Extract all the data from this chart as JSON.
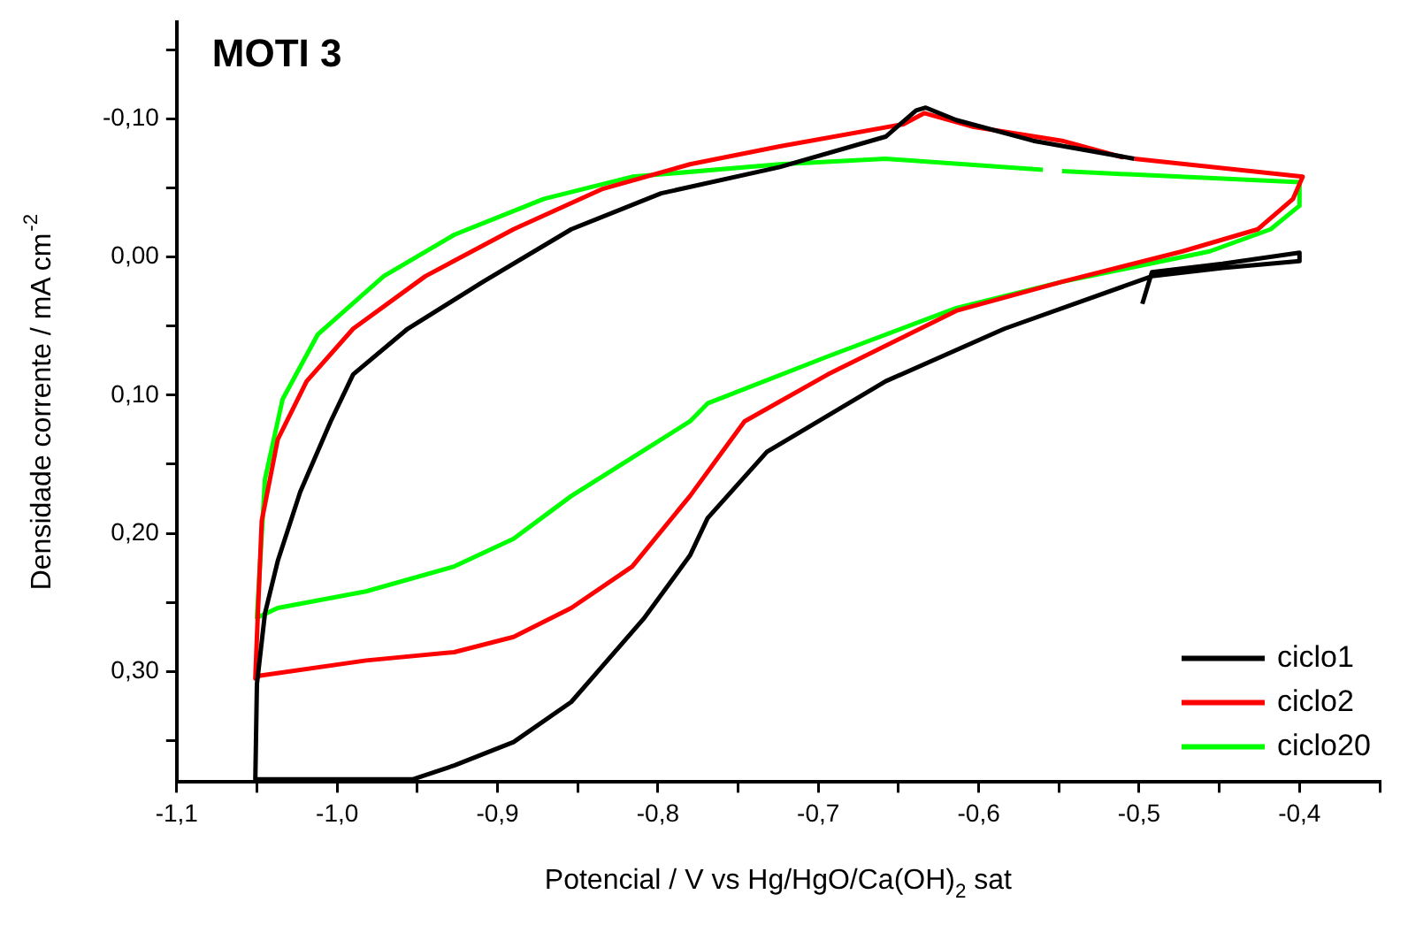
{
  "chart_data": {
    "type": "line",
    "title": "MOTI 3",
    "xlabel": "Potencial / V vs Hg/HgO/Ca(OH)$_{2}$ sat",
    "ylabel": "Densidade corrente / mA cm$^{-2}$",
    "xlim": [
      -1.1,
      -0.35
    ],
    "ylim": [
      0.38,
      -0.17
    ],
    "xticks": [
      {
        "value": -1.1,
        "label": "-1,1"
      },
      {
        "value": -1.05,
        "label": null
      },
      {
        "value": -1.0,
        "label": "-1,0"
      },
      {
        "value": -0.95,
        "label": null
      },
      {
        "value": -0.9,
        "label": "-0,9"
      },
      {
        "value": -0.85,
        "label": null
      },
      {
        "value": -0.8,
        "label": "-0,8"
      },
      {
        "value": -0.75,
        "label": null
      },
      {
        "value": -0.7,
        "label": "-0,7"
      },
      {
        "value": -0.65,
        "label": null
      },
      {
        "value": -0.6,
        "label": "-0,6"
      },
      {
        "value": -0.55,
        "label": null
      },
      {
        "value": -0.5,
        "label": "-0,5"
      },
      {
        "value": -0.45,
        "label": null
      },
      {
        "value": -0.4,
        "label": "-0,4"
      },
      {
        "value": -0.35,
        "label": null
      }
    ],
    "yticks": [
      {
        "value": -0.15,
        "label": null
      },
      {
        "value": -0.1,
        "label": "-0,10"
      },
      {
        "value": -0.05,
        "label": null
      },
      {
        "value": 0.0,
        "label": "0,00"
      },
      {
        "value": 0.05,
        "label": null
      },
      {
        "value": 0.1,
        "label": "0,10"
      },
      {
        "value": 0.15,
        "label": null
      },
      {
        "value": 0.2,
        "label": "0,20"
      },
      {
        "value": 0.25,
        "label": null
      },
      {
        "value": 0.3,
        "label": "0,30"
      },
      {
        "value": 0.35,
        "label": null
      }
    ],
    "grid": false,
    "legend": "bottom right",
    "marker": "none",
    "line_style": "solid",
    "series": [
      {
        "name": "ciclo1",
        "color": "#000000",
        "x": [
          -0.498,
          -0.492,
          -0.448,
          -0.4,
          -0.4,
          -0.448,
          -0.492,
          -0.584,
          -0.658,
          -0.732,
          -0.769,
          -0.78,
          -0.809,
          -0.854,
          -0.89,
          -0.927,
          -0.953,
          -1.001,
          -1.051,
          -1.05,
          -1.045,
          -1.037,
          -1.023,
          -1.004,
          -0.99,
          -0.956,
          -0.909,
          -0.854,
          -0.798,
          -0.724,
          -0.658,
          -0.639,
          -0.633,
          -0.614,
          -0.566,
          -0.503
        ],
        "values": [
          0.034,
          0.011,
          0.005,
          -0.003,
          0.003,
          0.008,
          0.014,
          0.052,
          0.09,
          0.141,
          0.189,
          0.216,
          0.262,
          0.322,
          0.351,
          0.368,
          0.378,
          0.378,
          0.378,
          0.309,
          0.258,
          0.22,
          0.17,
          0.119,
          0.085,
          0.052,
          0.018,
          -0.02,
          -0.046,
          -0.065,
          -0.087,
          -0.106,
          -0.108,
          -0.099,
          -0.084,
          -0.071
        ]
      },
      {
        "name": "ciclo2",
        "color": "#ff0000",
        "x": [
          -0.503,
          -0.398,
          -0.404,
          -0.426,
          -0.473,
          -0.548,
          -0.614,
          -0.694,
          -0.746,
          -0.78,
          -0.816,
          -0.854,
          -0.89,
          -0.927,
          -0.982,
          -1.048,
          -1.051,
          -1.05,
          -1.047,
          -1.037,
          -1.019,
          -0.99,
          -0.945,
          -0.89,
          -0.835,
          -0.78,
          -0.724,
          -0.647,
          -0.634,
          -0.603,
          -0.548,
          -0.51
        ],
        "values": [
          -0.071,
          -0.058,
          -0.042,
          -0.02,
          -0.004,
          0.018,
          0.039,
          0.085,
          0.119,
          0.173,
          0.224,
          0.254,
          0.275,
          0.286,
          0.292,
          0.303,
          0.305,
          0.275,
          0.191,
          0.132,
          0.09,
          0.052,
          0.014,
          -0.02,
          -0.049,
          -0.067,
          -0.08,
          -0.096,
          -0.104,
          -0.094,
          -0.084,
          -0.072
        ]
      },
      {
        "name": "ciclo20",
        "color": "#00ff00",
        "x": [
          -0.548,
          -0.4,
          -0.4,
          -0.418,
          -0.456,
          -0.548,
          -0.614,
          -0.694,
          -0.769,
          -0.78,
          -0.854,
          -0.89,
          -0.927,
          -0.982,
          -1.037,
          -1.05,
          -1.045,
          -1.034,
          -1.012,
          -0.971,
          -0.927,
          -0.871,
          -0.816,
          -0.724,
          -0.658,
          -0.56
        ],
        "values": [
          -0.062,
          -0.054,
          -0.037,
          -0.02,
          -0.004,
          0.018,
          0.037,
          0.072,
          0.106,
          0.119,
          0.173,
          0.204,
          0.224,
          0.242,
          0.254,
          0.261,
          0.161,
          0.103,
          0.056,
          0.014,
          -0.016,
          -0.042,
          -0.058,
          -0.067,
          -0.071,
          -0.063
        ]
      }
    ]
  }
}
